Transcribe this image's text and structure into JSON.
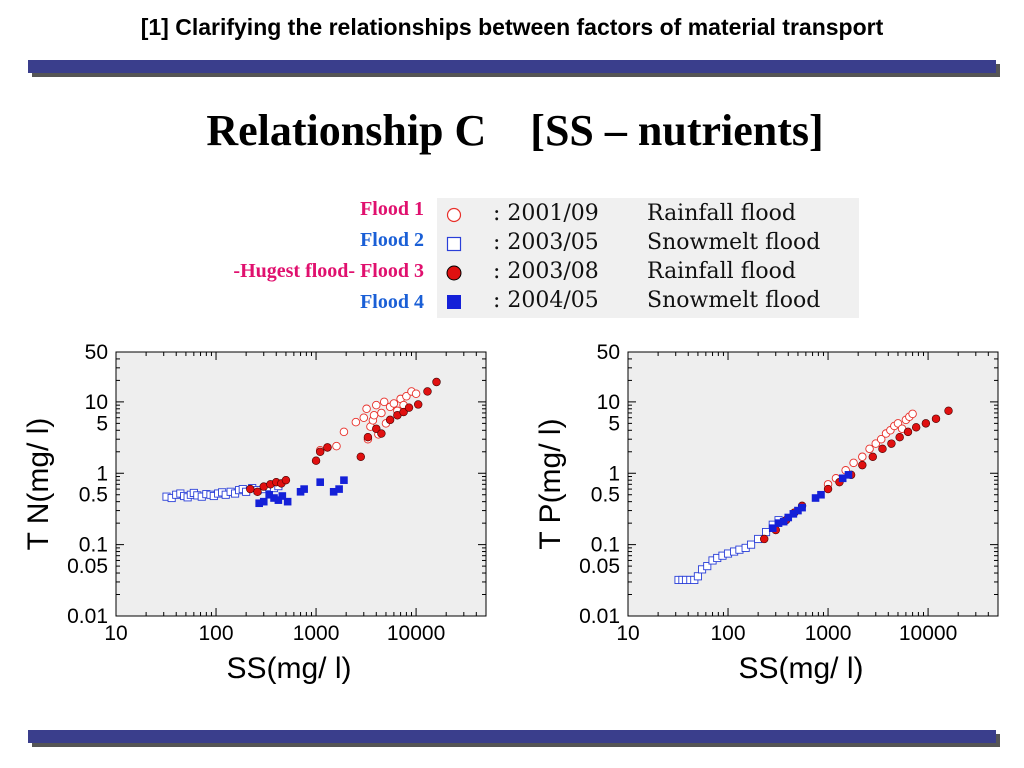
{
  "header": {
    "title": "[1] Clarifying the relationships between factors of material transport"
  },
  "main_title": "Relationship C    [SS – nutrients]",
  "legend": {
    "items": [
      {
        "label": "Flood 1",
        "prefix": "",
        "label_color": "#e0106e",
        "marker": "open-circle",
        "marker_color": "#e8302a",
        "date": ": 2001/09",
        "kind": "Rainfall flood"
      },
      {
        "label": "Flood 2",
        "prefix": "",
        "label_color": "#1a5fd6",
        "marker": "open-square",
        "marker_color": "#2a3fd8",
        "date": ": 2003/05",
        "kind": "Snowmelt flood"
      },
      {
        "label": "Flood 3",
        "prefix": "-Hugest flood- ",
        "label_color": "#e0106e",
        "marker": "filled-circle",
        "marker_color": "#e01010",
        "date": ": 2003/08",
        "kind": "Rainfall flood"
      },
      {
        "label": "Flood 4",
        "prefix": "",
        "label_color": "#1a5fd6",
        "marker": "filled-square",
        "marker_color": "#1420d8",
        "date": ": 2004/05",
        "kind": "Snowmelt flood"
      }
    ]
  },
  "chart_data": [
    {
      "type": "scatter",
      "xlabel": "SS(mg/ l)",
      "ylabel": "T N(mg/ l)",
      "x_scale": "log",
      "y_scale": "log",
      "xlim": [
        10,
        50000
      ],
      "ylim": [
        0.01,
        50
      ],
      "x_ticks": [
        10,
        100,
        1000,
        10000
      ],
      "y_ticks": [
        0.01,
        0.05,
        0.1,
        0.5,
        1,
        5,
        10,
        50
      ],
      "grid": false,
      "series": [
        {
          "name": "Flood 1",
          "marker": "open-circle",
          "color": "#e8302a",
          "x": [
            1100,
            1300,
            1600,
            1900,
            2500,
            3000,
            3200,
            3500,
            3700,
            4000,
            4200,
            4500,
            5000,
            5500,
            6000,
            7000,
            8000,
            9000,
            3300,
            3800,
            4800,
            6500,
            7500,
            10000
          ],
          "y": [
            2.1,
            2.3,
            2.4,
            3.8,
            5.2,
            6.0,
            8.0,
            4.5,
            5.5,
            9.0,
            3.5,
            7.0,
            5.0,
            8.5,
            9.5,
            11.0,
            12.0,
            14.0,
            3.0,
            6.5,
            10.0,
            7.5,
            9.0,
            13.0
          ]
        },
        {
          "name": "Flood 2",
          "marker": "open-square",
          "color": "#2a3fd8",
          "x": [
            32,
            36,
            40,
            44,
            48,
            52,
            56,
            60,
            65,
            72,
            80,
            88,
            95,
            105,
            115,
            125,
            140,
            155,
            170,
            185,
            200,
            230,
            260,
            300,
            340,
            380,
            420
          ],
          "y": [
            0.47,
            0.45,
            0.5,
            0.52,
            0.48,
            0.46,
            0.5,
            0.53,
            0.49,
            0.47,
            0.51,
            0.5,
            0.48,
            0.52,
            0.54,
            0.5,
            0.55,
            0.52,
            0.58,
            0.6,
            0.55,
            0.62,
            0.58,
            0.6,
            0.64,
            0.62,
            0.66
          ]
        },
        {
          "name": "Flood 3",
          "marker": "filled-circle",
          "color": "#e01010",
          "x": [
            220,
            260,
            300,
            350,
            400,
            450,
            500,
            1000,
            1100,
            1300,
            2800,
            3300,
            4000,
            4500,
            5500,
            6500,
            7500,
            8500,
            10500,
            13000,
            16000
          ],
          "y": [
            0.6,
            0.55,
            0.65,
            0.7,
            0.75,
            0.72,
            0.8,
            1.5,
            2.0,
            2.3,
            1.7,
            3.2,
            4.2,
            3.6,
            5.6,
            6.5,
            7.2,
            8.3,
            9.2,
            14.0,
            19.0
          ]
        },
        {
          "name": "Flood 4",
          "marker": "filled-square",
          "color": "#1420d8",
          "x": [
            270,
            300,
            340,
            380,
            420,
            460,
            520,
            700,
            760,
            1100,
            1500,
            1700,
            1900
          ],
          "y": [
            0.38,
            0.4,
            0.5,
            0.45,
            0.42,
            0.48,
            0.4,
            0.55,
            0.6,
            0.75,
            0.55,
            0.6,
            0.8
          ]
        }
      ]
    },
    {
      "type": "scatter",
      "xlabel": "SS(mg/ l)",
      "ylabel": "T P(mg/ l)",
      "x_scale": "log",
      "y_scale": "log",
      "xlim": [
        10,
        50000
      ],
      "ylim": [
        0.01,
        50
      ],
      "x_ticks": [
        10,
        100,
        1000,
        10000
      ],
      "y_ticks": [
        0.01,
        0.05,
        0.1,
        0.5,
        1,
        5,
        10,
        50
      ],
      "grid": false,
      "series": [
        {
          "name": "Flood 1",
          "marker": "open-circle",
          "color": "#e8302a",
          "x": [
            1000,
            1200,
            1500,
            1800,
            2200,
            2600,
            3000,
            3400,
            3800,
            4200,
            4600,
            5000,
            5500,
            6000,
            6500,
            7000
          ],
          "y": [
            0.7,
            0.85,
            1.1,
            1.4,
            1.7,
            2.2,
            2.6,
            3.0,
            3.6,
            4.0,
            4.6,
            5.0,
            4.2,
            5.6,
            6.2,
            6.8
          ]
        },
        {
          "name": "Flood 2",
          "marker": "open-square",
          "color": "#2a3fd8",
          "x": [
            32,
            35,
            38,
            42,
            46,
            50,
            55,
            62,
            70,
            78,
            88,
            100,
            115,
            130,
            150,
            170,
            200,
            240,
            280,
            320
          ],
          "y": [
            0.032,
            0.032,
            0.032,
            0.032,
            0.032,
            0.036,
            0.045,
            0.05,
            0.06,
            0.065,
            0.07,
            0.075,
            0.08,
            0.085,
            0.09,
            0.1,
            0.12,
            0.15,
            0.19,
            0.22
          ]
        },
        {
          "name": "Flood 3",
          "marker": "filled-circle",
          "color": "#e01010",
          "x": [
            230,
            300,
            380,
            460,
            550,
            1000,
            1300,
            1700,
            2200,
            2800,
            3500,
            4300,
            5200,
            6300,
            7600,
            9500,
            12000,
            16000
          ],
          "y": [
            0.12,
            0.16,
            0.22,
            0.28,
            0.35,
            0.6,
            0.75,
            0.95,
            1.3,
            1.7,
            2.2,
            2.6,
            3.2,
            3.8,
            4.4,
            5.0,
            5.8,
            7.5
          ]
        },
        {
          "name": "Flood 4",
          "marker": "filled-square",
          "color": "#1420d8",
          "x": [
            280,
            320,
            360,
            400,
            450,
            500,
            550,
            750,
            850,
            1400,
            1600
          ],
          "y": [
            0.17,
            0.2,
            0.21,
            0.24,
            0.27,
            0.3,
            0.33,
            0.45,
            0.5,
            0.85,
            0.95
          ]
        }
      ]
    }
  ]
}
